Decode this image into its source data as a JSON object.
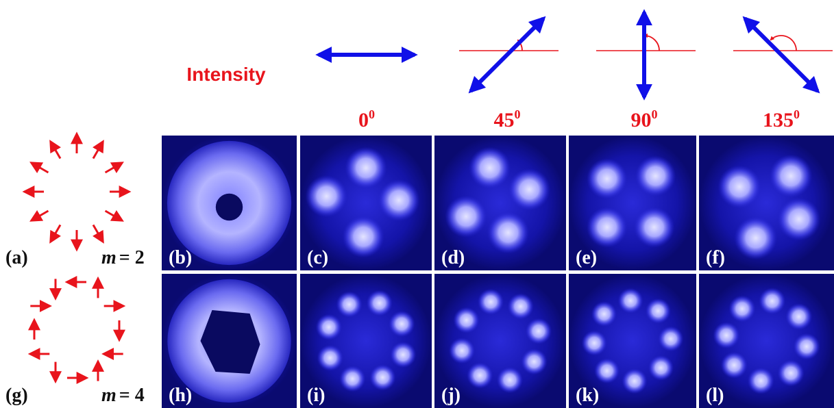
{
  "title": "Intensity",
  "angles": [
    {
      "value": "0",
      "sup": "0"
    },
    {
      "value": "45",
      "sup": "0"
    },
    {
      "value": "90",
      "sup": "0"
    },
    {
      "value": "135",
      "sup": "0"
    }
  ],
  "rows": [
    {
      "label": "(a)",
      "var": "m",
      "rest": "= 2",
      "panels": [
        "(b)",
        "(c)",
        "(d)",
        "(e)",
        "(f)"
      ]
    },
    {
      "label": "(g)",
      "var": "m",
      "rest": "= 4",
      "panels": [
        "(h)",
        "(i)",
        "(j)",
        "(k)",
        "(l)"
      ]
    }
  ]
}
